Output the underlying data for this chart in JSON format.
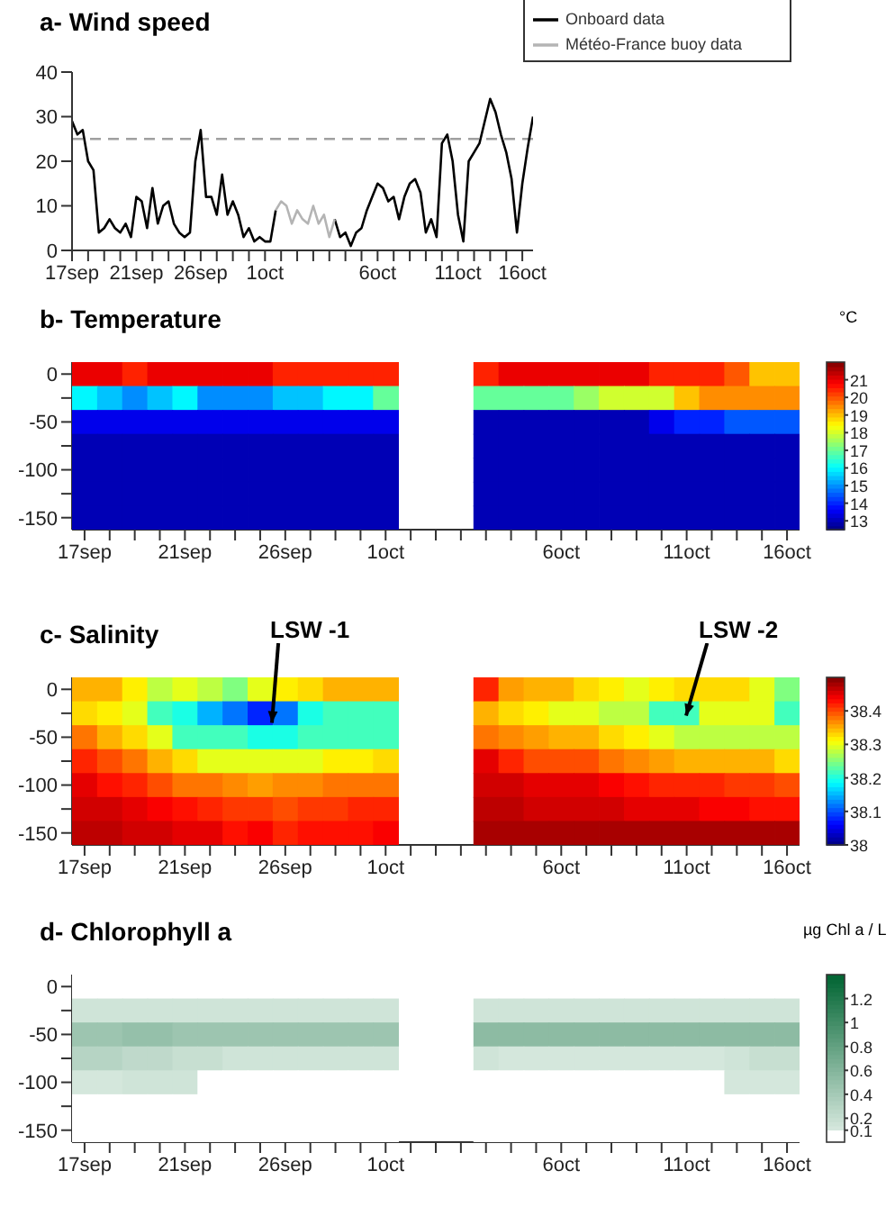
{
  "chart_data": [
    {
      "type": "line",
      "title": "a- Wind speed",
      "ylim": [
        0,
        40
      ],
      "yticks": [
        0,
        10,
        20,
        30,
        40
      ],
      "categories": [
        "17sep",
        null,
        null,
        null,
        null,
        null,
        null,
        null,
        null,
        null,
        null,
        null,
        "21sep",
        null,
        null,
        null,
        null,
        null,
        null,
        null,
        null,
        null,
        null,
        null,
        "26sep",
        null,
        null,
        null,
        null,
        null,
        null,
        null,
        null,
        null,
        null,
        null,
        "1oct",
        null,
        null,
        null,
        null,
        null,
        null,
        null,
        null,
        null,
        null,
        null,
        null,
        null,
        null,
        null,
        null,
        null,
        null,
        null,
        null,
        "6oct",
        null,
        null,
        null,
        null,
        null,
        null,
        null,
        null,
        null,
        null,
        null,
        null,
        null,
        null,
        "11oct",
        null,
        null,
        null,
        null,
        null,
        null,
        null,
        null,
        null,
        null,
        null,
        "16oct",
        null,
        null
      ],
      "legend": "top right",
      "grid": false,
      "ref_lines": [
        {
          "axis": "y",
          "value": 25,
          "color": "#a0a0a0",
          "line_style": "dashed"
        }
      ],
      "series": [
        {
          "name": "Onboard data",
          "color": "#000000",
          "values": [
            29,
            26,
            27,
            20,
            18,
            4,
            5,
            7,
            5,
            4,
            6,
            3,
            12,
            11,
            5,
            14,
            6,
            10,
            11,
            6,
            4,
            3,
            4,
            20,
            27,
            12,
            12,
            8,
            17,
            8,
            11,
            8,
            3,
            5,
            2,
            3,
            2,
            2,
            9,
            null,
            null,
            null,
            null,
            null,
            null,
            null,
            null,
            null,
            null,
            7,
            3,
            4,
            1,
            4,
            5,
            9,
            12,
            15,
            14,
            11,
            12,
            7,
            12,
            15,
            16,
            13,
            4,
            7,
            3,
            24,
            26,
            20,
            8,
            2,
            20,
            22,
            24,
            29,
            34,
            31,
            26,
            22,
            16,
            4,
            15,
            23,
            30
          ]
        },
        {
          "name": "Météo-France buoy data",
          "color": "#b4b4b4",
          "values": [
            null,
            null,
            null,
            null,
            null,
            null,
            null,
            null,
            null,
            null,
            null,
            null,
            null,
            null,
            null,
            null,
            null,
            null,
            null,
            null,
            null,
            null,
            null,
            null,
            null,
            null,
            null,
            null,
            null,
            null,
            null,
            null,
            null,
            null,
            null,
            null,
            null,
            null,
            9,
            11,
            10,
            6,
            9,
            7,
            6,
            10,
            6,
            8,
            3,
            7,
            null,
            null,
            null,
            null,
            null,
            null,
            null,
            null,
            null,
            null,
            null,
            null,
            null,
            null,
            null,
            null,
            null,
            null,
            null,
            null,
            null,
            null,
            null,
            null,
            null,
            null,
            null,
            null,
            null,
            null,
            null,
            null,
            null,
            null,
            null,
            null,
            null
          ]
        }
      ]
    },
    {
      "type": "heatmap",
      "title": "b- Temperature",
      "clabel": "°C",
      "clim": [
        12.5,
        22
      ],
      "cticks": [
        13,
        14,
        15,
        16,
        17,
        18,
        19,
        20,
        21
      ],
      "categories": [
        "17sep",
        null,
        null,
        null,
        "21sep",
        null,
        null,
        null,
        "26sep",
        null,
        null,
        null,
        "1oct",
        null,
        null,
        null,
        null,
        null,
        null,
        "6oct",
        null,
        null,
        null,
        null,
        "11oct",
        null,
        null,
        null,
        "16oct"
      ],
      "y_categories": [
        "0",
        null,
        "-50",
        null,
        "-100",
        null,
        "-150"
      ],
      "cells": [
        [
          21,
          21,
          20.5,
          21,
          21,
          21,
          21,
          21,
          20.5,
          20.5,
          20.5,
          20.5,
          20.5,
          null,
          null,
          null,
          20.5,
          21,
          21,
          21,
          21,
          21,
          21,
          20.5,
          20.5,
          20.5,
          20,
          19,
          19
        ],
        [
          16,
          15.5,
          15,
          15.5,
          16,
          15,
          15,
          15,
          15.5,
          15.5,
          16,
          16,
          17,
          null,
          null,
          null,
          17,
          17,
          17,
          17,
          17.5,
          18,
          18,
          18,
          19,
          19.5,
          19.5,
          19.5,
          19.5
        ],
        [
          13.5,
          13.5,
          13.5,
          13.5,
          13.5,
          13.5,
          13.5,
          13.5,
          13.5,
          13.5,
          13.5,
          13.5,
          13.5,
          null,
          null,
          null,
          13,
          13,
          13,
          13,
          13,
          13,
          13,
          13.5,
          14,
          14,
          14.5,
          14.5,
          14.5
        ],
        [
          13,
          13,
          13,
          13,
          13,
          13,
          13,
          13,
          13,
          13,
          13,
          13,
          13,
          null,
          null,
          null,
          13,
          13,
          13,
          13,
          13,
          13,
          13,
          13,
          13,
          13,
          13,
          13,
          13
        ],
        [
          13,
          13,
          13,
          13,
          13,
          13,
          13,
          13,
          13,
          13,
          13,
          13,
          13,
          null,
          null,
          null,
          13,
          13,
          13,
          13,
          13,
          13,
          13,
          13,
          13,
          13,
          13,
          13,
          13
        ],
        [
          13,
          13,
          13,
          13,
          13,
          13,
          13,
          13,
          13,
          13,
          13,
          13,
          13,
          null,
          null,
          null,
          13,
          13,
          13,
          13,
          13,
          13,
          13,
          13,
          13,
          13,
          13,
          13,
          13
        ],
        [
          13,
          13,
          13,
          13,
          13,
          13,
          13,
          13,
          13,
          13,
          13,
          13,
          13,
          null,
          null,
          null,
          13,
          13,
          13,
          13,
          13,
          13,
          13,
          13,
          13,
          13,
          13,
          13,
          13
        ]
      ]
    },
    {
      "type": "heatmap",
      "title": "c- Salinity",
      "clim": [
        38,
        38.5
      ],
      "cticks": [
        38,
        38.1,
        38.2,
        38.3,
        38.4
      ],
      "annotations": [
        "LSW -1",
        "LSW -2"
      ],
      "categories": [
        "17sep",
        null,
        null,
        null,
        "21sep",
        null,
        null,
        null,
        "26sep",
        null,
        null,
        null,
        "1oct",
        null,
        null,
        null,
        null,
        null,
        null,
        "6oct",
        null,
        null,
        null,
        null,
        "11oct",
        null,
        null,
        null,
        "16oct"
      ],
      "y_categories": [
        "0",
        null,
        "-50",
        null,
        "-100",
        null,
        "-150"
      ],
      "cells": [
        [
          38.35,
          38.35,
          38.32,
          38.28,
          38.3,
          38.28,
          38.25,
          38.3,
          38.32,
          38.33,
          38.35,
          38.35,
          38.35,
          null,
          null,
          null,
          38.42,
          38.36,
          38.35,
          38.35,
          38.33,
          38.32,
          38.3,
          38.32,
          38.33,
          38.33,
          38.33,
          38.3,
          38.25
        ],
        [
          38.33,
          38.32,
          38.3,
          38.22,
          38.2,
          38.15,
          38.12,
          38.08,
          38.12,
          38.2,
          38.22,
          38.22,
          38.22,
          null,
          null,
          null,
          38.35,
          38.33,
          38.32,
          38.3,
          38.3,
          38.28,
          38.28,
          38.22,
          38.22,
          38.3,
          38.3,
          38.3,
          38.22
        ],
        [
          38.38,
          38.35,
          38.33,
          38.3,
          38.22,
          38.22,
          38.22,
          38.2,
          38.2,
          38.22,
          38.22,
          38.22,
          38.22,
          null,
          null,
          null,
          38.38,
          38.37,
          38.36,
          38.35,
          38.35,
          38.33,
          38.32,
          38.3,
          38.28,
          38.28,
          38.28,
          38.28,
          38.28
        ],
        [
          38.42,
          38.4,
          38.38,
          38.35,
          38.33,
          38.3,
          38.3,
          38.3,
          38.3,
          38.3,
          38.32,
          38.32,
          38.33,
          null,
          null,
          null,
          38.45,
          38.42,
          38.4,
          38.4,
          38.4,
          38.38,
          38.37,
          38.36,
          38.35,
          38.35,
          38.35,
          38.35,
          38.33
        ],
        [
          38.45,
          38.43,
          38.42,
          38.4,
          38.38,
          38.38,
          38.37,
          38.36,
          38.37,
          38.37,
          38.38,
          38.38,
          38.38,
          null,
          null,
          null,
          38.46,
          38.46,
          38.45,
          38.45,
          38.45,
          38.44,
          38.43,
          38.42,
          38.42,
          38.42,
          38.41,
          38.41,
          38.4
        ],
        [
          38.46,
          38.46,
          38.45,
          38.44,
          38.43,
          38.42,
          38.41,
          38.41,
          38.4,
          38.41,
          38.41,
          38.42,
          38.42,
          null,
          null,
          null,
          38.47,
          38.47,
          38.46,
          38.46,
          38.46,
          38.46,
          38.45,
          38.45,
          38.45,
          38.44,
          38.44,
          38.43,
          38.43
        ],
        [
          38.47,
          38.47,
          38.46,
          38.46,
          38.45,
          38.45,
          38.43,
          38.44,
          38.42,
          38.43,
          38.43,
          38.43,
          38.44,
          null,
          null,
          null,
          38.48,
          38.48,
          38.48,
          38.48,
          38.48,
          38.48,
          38.48,
          38.48,
          38.48,
          38.48,
          38.48,
          38.48,
          38.48
        ]
      ]
    },
    {
      "type": "heatmap",
      "title": "d- Chlorophyll a",
      "clabel": "µg Chl a / L",
      "clim": [
        0,
        1.4
      ],
      "cticks": [
        0.1,
        0.2,
        0.4,
        0.6,
        0.8,
        1,
        1.2
      ],
      "categories": [
        "17sep",
        null,
        null,
        null,
        "21sep",
        null,
        null,
        null,
        "26sep",
        null,
        null,
        null,
        "1oct",
        null,
        null,
        null,
        null,
        null,
        null,
        "6oct",
        null,
        null,
        null,
        null,
        "11oct",
        null,
        null,
        null,
        "16oct"
      ],
      "y_categories": [
        "0",
        null,
        "-50",
        null,
        "-100",
        null,
        "-150"
      ],
      "cells": [
        [
          0.08,
          0.08,
          0.08,
          0.08,
          0.08,
          0.08,
          0.08,
          0.08,
          0.08,
          0.08,
          0.08,
          0.08,
          0.08,
          null,
          null,
          null,
          0.08,
          0.08,
          0.08,
          0.08,
          0.08,
          0.08,
          0.08,
          0.08,
          0.08,
          0.08,
          0.08,
          0.08,
          0.08
        ],
        [
          0.15,
          0.15,
          0.15,
          0.15,
          0.15,
          0.15,
          0.15,
          0.15,
          0.15,
          0.15,
          0.15,
          0.15,
          0.15,
          null,
          null,
          null,
          0.15,
          0.15,
          0.15,
          0.15,
          0.15,
          0.15,
          0.15,
          0.15,
          0.15,
          0.15,
          0.15,
          0.15,
          0.15
        ],
        [
          0.45,
          0.45,
          0.5,
          0.5,
          0.45,
          0.45,
          0.45,
          0.45,
          0.45,
          0.45,
          0.45,
          0.45,
          0.45,
          null,
          null,
          null,
          0.55,
          0.55,
          0.55,
          0.55,
          0.55,
          0.55,
          0.55,
          0.55,
          0.55,
          0.55,
          0.55,
          0.55,
          0.55
        ],
        [
          0.3,
          0.3,
          0.25,
          0.25,
          0.2,
          0.2,
          0.15,
          0.15,
          0.15,
          0.15,
          0.15,
          0.15,
          0.15,
          null,
          null,
          null,
          0.15,
          0.12,
          0.12,
          0.12,
          0.12,
          0.12,
          0.12,
          0.12,
          0.12,
          0.12,
          0.15,
          0.2,
          0.2
        ],
        [
          0.12,
          0.12,
          0.15,
          0.15,
          0.15,
          0.08,
          0.08,
          0.08,
          0.08,
          0.08,
          0.08,
          0.08,
          0.08,
          null,
          null,
          null,
          0.05,
          0.05,
          0.05,
          0.05,
          0.05,
          0.05,
          0.05,
          0.05,
          0.05,
          0.05,
          0.12,
          0.12,
          0.12
        ],
        [
          0.05,
          0.05,
          0.05,
          0.05,
          0.05,
          0.05,
          0.05,
          0.05,
          0.05,
          0.05,
          0.05,
          0.05,
          0.05,
          null,
          null,
          null,
          0.05,
          0.05,
          0.05,
          0.05,
          0.05,
          0.05,
          0.05,
          0.05,
          0.05,
          0.05,
          0.05,
          0.05,
          0.05
        ],
        [
          0.05,
          0.05,
          0.05,
          0.05,
          0.05,
          0.05,
          0.05,
          0.05,
          0.05,
          0.05,
          0.05,
          0.05,
          0.05,
          null,
          null,
          null,
          0.05,
          0.05,
          0.05,
          0.05,
          0.05,
          0.05,
          0.05,
          0.05,
          0.05,
          0.05,
          0.05,
          0.05,
          0.05
        ]
      ]
    }
  ]
}
